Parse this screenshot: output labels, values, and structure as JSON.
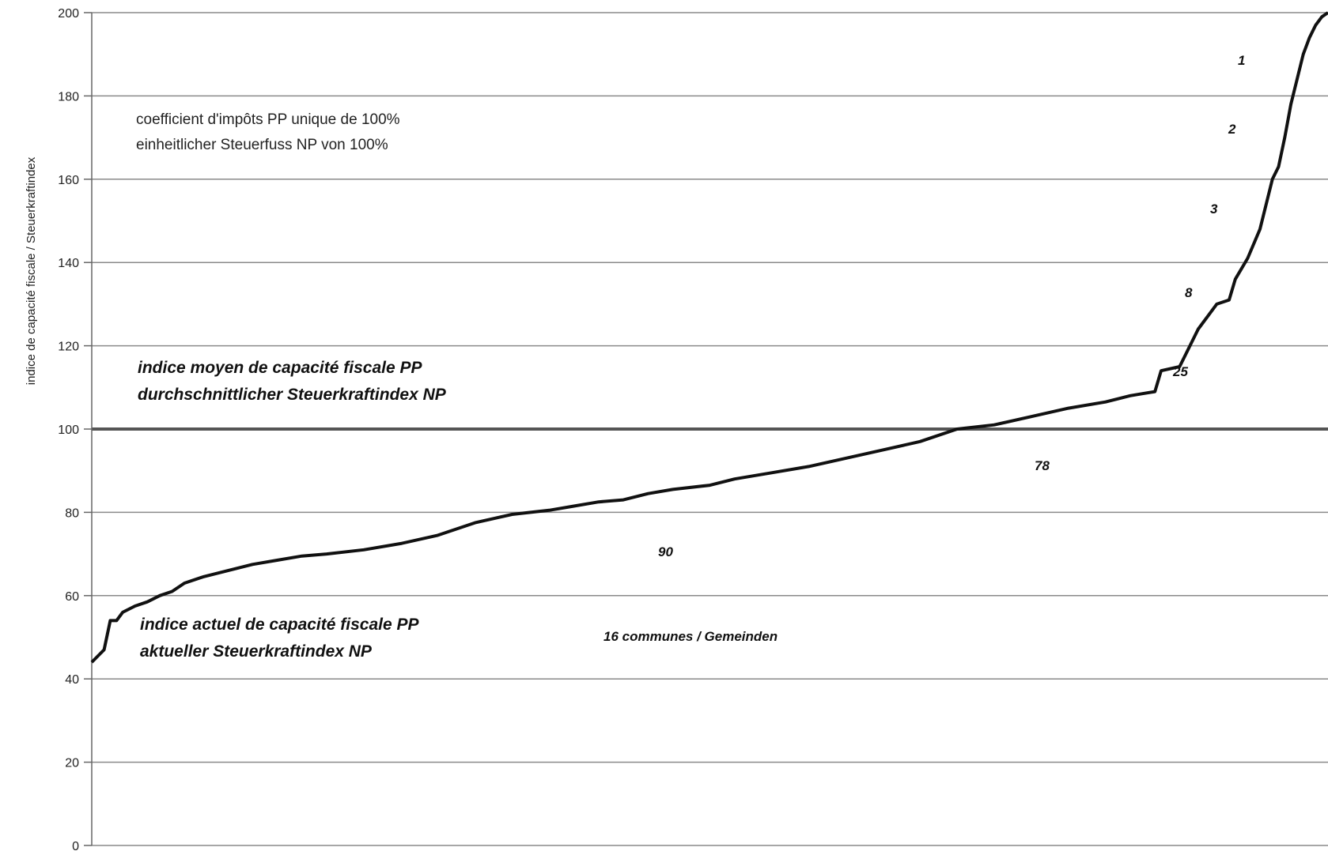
{
  "chart_data": {
    "type": "line",
    "title": "",
    "ylabel": "indice de capacité fiscale / Steuerkraftindex",
    "xlabel": "",
    "ylim": [
      0,
      200
    ],
    "yticks": [
      0,
      20,
      40,
      60,
      80,
      100,
      120,
      140,
      160,
      180,
      200
    ],
    "grid": true,
    "reference_line": {
      "value": 100,
      "label_lines": [
        "indice moyen de capacité fiscale PP",
        "durchschnittlicher Steuerkraftindex NP"
      ]
    },
    "series": [
      {
        "name": "",
        "x_fraction": [
          0,
          0.01,
          0.015,
          0.02,
          0.025,
          0.035,
          0.045,
          0.055,
          0.065,
          0.075,
          0.09,
          0.11,
          0.13,
          0.15,
          0.17,
          0.19,
          0.22,
          0.25,
          0.28,
          0.31,
          0.34,
          0.37,
          0.39,
          0.41,
          0.43,
          0.45,
          0.47,
          0.5,
          0.52,
          0.55,
          0.58,
          0.61,
          0.64,
          0.67,
          0.7,
          0.73,
          0.76,
          0.79,
          0.82,
          0.84,
          0.85,
          0.86,
          0.865,
          0.88,
          0.895,
          0.91,
          0.92,
          0.925,
          0.935,
          0.945,
          0.955,
          0.96,
          0.965,
          0.97,
          0.975,
          0.98,
          0.985,
          0.99,
          0.995,
          1.0
        ],
        "values": [
          44,
          47,
          54,
          54,
          56,
          57.5,
          58.5,
          60,
          61,
          63,
          64.5,
          66,
          67.5,
          68.5,
          69.5,
          70,
          71,
          72.5,
          74.5,
          77.5,
          79.5,
          80.5,
          81.5,
          82.5,
          83,
          84.5,
          85.5,
          86.5,
          88,
          89.5,
          91,
          93,
          95,
          97,
          100,
          101,
          103,
          105,
          106.5,
          108,
          108.5,
          109,
          114,
          115,
          124,
          130,
          131,
          136,
          141,
          148,
          160,
          163,
          170,
          178,
          184,
          190,
          194,
          197,
          199,
          200
        ]
      }
    ],
    "annotations": {
      "coef_line1": "coefficient d'impôts PP unique de 100%",
      "coef_line2": "einheitlicher Steuerfuss NP von 100%",
      "current_line1": "indice actuel de capacité fiscale PP",
      "current_line2": "aktueller Steuerkraftindex NP",
      "communes": "16 communes / Gemeinden",
      "count_90": "90",
      "count_78": "78",
      "count_25": "25",
      "count_8": "8",
      "count_3": "3",
      "count_2": "2",
      "count_1": "1"
    }
  }
}
